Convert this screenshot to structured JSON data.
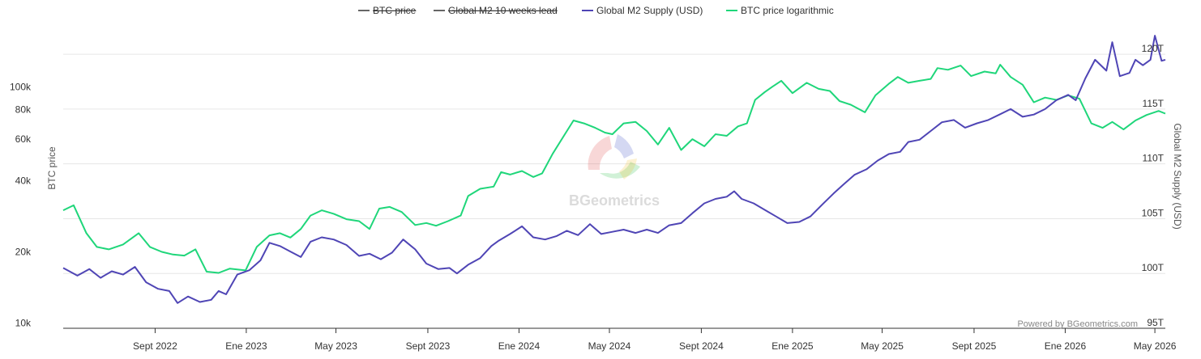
{
  "chart_data": {
    "type": "line",
    "watermark": "BGeometrics",
    "credit": "Powered by BGeometrics.com",
    "legend_position": "top-center",
    "legend": [
      {
        "name": "BTC price",
        "color": "#555555",
        "hidden": true
      },
      {
        "name": "Global M2 10 weeks lead",
        "color": "#555555",
        "hidden": true
      },
      {
        "name": "Global M2 Supply (USD)",
        "color": "#4f45b5",
        "hidden": false
      },
      {
        "name": "BTC price logarithmic",
        "color": "#1fd67a",
        "hidden": false
      }
    ],
    "x_axis": {
      "start": "2022-05-01",
      "end": "2026-05-15",
      "ticks": [
        {
          "label": "Sept 2022",
          "date": "2022-09-01"
        },
        {
          "label": "Ene 2023",
          "date": "2023-01-01"
        },
        {
          "label": "May 2023",
          "date": "2023-05-01"
        },
        {
          "label": "Sept 2023",
          "date": "2023-09-01"
        },
        {
          "label": "Ene 2024",
          "date": "2024-01-01"
        },
        {
          "label": "May 2024",
          "date": "2024-05-01"
        },
        {
          "label": "Sept 2024",
          "date": "2024-09-01"
        },
        {
          "label": "Ene 2025",
          "date": "2025-01-01"
        },
        {
          "label": "May 2025",
          "date": "2025-05-01"
        },
        {
          "label": "Sept 2025",
          "date": "2025-09-01"
        },
        {
          "label": "Ene 2026",
          "date": "2026-01-01"
        },
        {
          "label": "May 2026",
          "date": "2026-05-01"
        }
      ]
    },
    "y_left": {
      "title": "BTC price",
      "scale": "log",
      "range": [
        9500,
        170000
      ],
      "ticks": [
        {
          "label": "10k",
          "value": 10000
        },
        {
          "label": "20k",
          "value": 20000
        },
        {
          "label": "40k",
          "value": 40000
        },
        {
          "label": "60k",
          "value": 60000
        },
        {
          "label": "80k",
          "value": 80000
        },
        {
          "label": "100k",
          "value": 100000
        }
      ]
    },
    "y_right": {
      "title": "Global M2 Supply (USD)",
      "scale": "linear",
      "unit": "T",
      "range": [
        95,
        122
      ],
      "ticks": [
        {
          "label": "95T",
          "value": 95
        },
        {
          "label": "100T",
          "value": 100
        },
        {
          "label": "105T",
          "value": 105
        },
        {
          "label": "110T",
          "value": 110
        },
        {
          "label": "115T",
          "value": 115
        },
        {
          "label": "120T",
          "value": 120
        }
      ]
    },
    "series": [
      {
        "name": "BTC price logarithmic",
        "axis": "left",
        "color": "#1fd67a",
        "points": [
          [
            "2022-05-01",
            30000
          ],
          [
            "2022-05-15",
            31500
          ],
          [
            "2022-06-01",
            24000
          ],
          [
            "2022-06-15",
            21000
          ],
          [
            "2022-07-01",
            20500
          ],
          [
            "2022-07-20",
            21500
          ],
          [
            "2022-08-10",
            24000
          ],
          [
            "2022-08-25",
            21000
          ],
          [
            "2022-09-10",
            20000
          ],
          [
            "2022-09-25",
            19500
          ],
          [
            "2022-10-10",
            19300
          ],
          [
            "2022-10-25",
            20500
          ],
          [
            "2022-11-09",
            16500
          ],
          [
            "2022-11-25",
            16300
          ],
          [
            "2022-12-10",
            17000
          ],
          [
            "2022-12-31",
            16700
          ],
          [
            "2023-01-15",
            21000
          ],
          [
            "2023-02-01",
            23500
          ],
          [
            "2023-02-15",
            24000
          ],
          [
            "2023-03-01",
            23000
          ],
          [
            "2023-03-15",
            25000
          ],
          [
            "2023-03-28",
            28500
          ],
          [
            "2023-04-12",
            30000
          ],
          [
            "2023-04-28",
            29000
          ],
          [
            "2023-05-15",
            27500
          ],
          [
            "2023-06-01",
            27000
          ],
          [
            "2023-06-15",
            25000
          ],
          [
            "2023-06-28",
            30500
          ],
          [
            "2023-07-12",
            31000
          ],
          [
            "2023-07-28",
            29500
          ],
          [
            "2023-08-15",
            26000
          ],
          [
            "2023-08-30",
            26500
          ],
          [
            "2023-09-12",
            25800
          ],
          [
            "2023-09-28",
            27000
          ],
          [
            "2023-10-15",
            28500
          ],
          [
            "2023-10-25",
            34500
          ],
          [
            "2023-11-10",
            37000
          ],
          [
            "2023-11-28",
            37800
          ],
          [
            "2023-12-08",
            43500
          ],
          [
            "2023-12-20",
            42500
          ],
          [
            "2024-01-05",
            44000
          ],
          [
            "2024-01-20",
            41500
          ],
          [
            "2024-02-01",
            43000
          ],
          [
            "2024-02-15",
            52000
          ],
          [
            "2024-03-01",
            62000
          ],
          [
            "2024-03-14",
            72000
          ],
          [
            "2024-03-28",
            70000
          ],
          [
            "2024-04-12",
            67000
          ],
          [
            "2024-04-25",
            64000
          ],
          [
            "2024-05-05",
            63000
          ],
          [
            "2024-05-20",
            70000
          ],
          [
            "2024-06-05",
            71000
          ],
          [
            "2024-06-20",
            65000
          ],
          [
            "2024-07-05",
            57000
          ],
          [
            "2024-07-20",
            67000
          ],
          [
            "2024-08-05",
            54000
          ],
          [
            "2024-08-20",
            60000
          ],
          [
            "2024-09-05",
            56000
          ],
          [
            "2024-09-20",
            63000
          ],
          [
            "2024-10-05",
            62000
          ],
          [
            "2024-10-20",
            68000
          ],
          [
            "2024-11-01",
            70000
          ],
          [
            "2024-11-12",
            88000
          ],
          [
            "2024-11-25",
            95000
          ],
          [
            "2024-12-05",
            100000
          ],
          [
            "2024-12-17",
            106000
          ],
          [
            "2025-01-01",
            94000
          ],
          [
            "2025-01-20",
            104000
          ],
          [
            "2025-02-05",
            98000
          ],
          [
            "2025-02-20",
            96000
          ],
          [
            "2025-03-05",
            87000
          ],
          [
            "2025-03-20",
            84000
          ],
          [
            "2025-04-08",
            78000
          ],
          [
            "2025-04-22",
            92000
          ],
          [
            "2025-05-10",
            103000
          ],
          [
            "2025-05-22",
            110000
          ],
          [
            "2025-06-05",
            104000
          ],
          [
            "2025-06-20",
            106000
          ],
          [
            "2025-07-05",
            108000
          ],
          [
            "2025-07-14",
            120000
          ],
          [
            "2025-07-28",
            118000
          ],
          [
            "2025-08-14",
            123000
          ],
          [
            "2025-08-28",
            111000
          ],
          [
            "2025-09-15",
            116000
          ],
          [
            "2025-09-30",
            114000
          ],
          [
            "2025-10-06",
            124000
          ],
          [
            "2025-10-20",
            110000
          ],
          [
            "2025-11-05",
            102000
          ],
          [
            "2025-11-20",
            86000
          ],
          [
            "2025-12-05",
            90000
          ],
          [
            "2025-12-20",
            88000
          ],
          [
            "2026-01-05",
            92000
          ],
          [
            "2026-01-20",
            89000
          ],
          [
            "2026-02-05",
            70000
          ],
          [
            "2026-02-20",
            67000
          ],
          [
            "2026-03-05",
            71000
          ],
          [
            "2026-03-20",
            66000
          ],
          [
            "2026-04-05",
            72000
          ],
          [
            "2026-04-20",
            76000
          ],
          [
            "2026-05-06",
            79000
          ],
          [
            "2026-05-15",
            77000
          ]
        ]
      },
      {
        "name": "Global M2 Supply (USD)",
        "axis": "right",
        "color": "#4f45b5",
        "points": [
          [
            "2022-05-01",
            100.5
          ],
          [
            "2022-05-20",
            99.8
          ],
          [
            "2022-06-05",
            100.4
          ],
          [
            "2022-06-20",
            99.6
          ],
          [
            "2022-07-05",
            100.2
          ],
          [
            "2022-07-20",
            99.9
          ],
          [
            "2022-08-05",
            100.6
          ],
          [
            "2022-08-20",
            99.2
          ],
          [
            "2022-09-05",
            98.6
          ],
          [
            "2022-09-20",
            98.4
          ],
          [
            "2022-10-01",
            97.3
          ],
          [
            "2022-10-15",
            97.9
          ],
          [
            "2022-10-31",
            97.4
          ],
          [
            "2022-11-15",
            97.6
          ],
          [
            "2022-11-25",
            98.4
          ],
          [
            "2022-12-05",
            98.1
          ],
          [
            "2022-12-20",
            99.9
          ],
          [
            "2023-01-05",
            100.3
          ],
          [
            "2023-01-20",
            101.2
          ],
          [
            "2023-02-01",
            102.8
          ],
          [
            "2023-02-15",
            102.5
          ],
          [
            "2023-03-01",
            102.0
          ],
          [
            "2023-03-15",
            101.5
          ],
          [
            "2023-03-28",
            102.9
          ],
          [
            "2023-04-12",
            103.3
          ],
          [
            "2023-04-28",
            103.1
          ],
          [
            "2023-05-15",
            102.6
          ],
          [
            "2023-06-01",
            101.6
          ],
          [
            "2023-06-15",
            101.8
          ],
          [
            "2023-06-30",
            101.3
          ],
          [
            "2023-07-15",
            101.9
          ],
          [
            "2023-07-30",
            103.1
          ],
          [
            "2023-08-15",
            102.2
          ],
          [
            "2023-08-30",
            100.9
          ],
          [
            "2023-09-15",
            100.4
          ],
          [
            "2023-09-30",
            100.5
          ],
          [
            "2023-10-10",
            100.0
          ],
          [
            "2023-10-25",
            100.8
          ],
          [
            "2023-11-10",
            101.4
          ],
          [
            "2023-11-25",
            102.5
          ],
          [
            "2023-12-05",
            103.0
          ],
          [
            "2023-12-20",
            103.6
          ],
          [
            "2024-01-05",
            104.3
          ],
          [
            "2024-01-20",
            103.3
          ],
          [
            "2024-02-05",
            103.1
          ],
          [
            "2024-02-20",
            103.4
          ],
          [
            "2024-03-05",
            103.9
          ],
          [
            "2024-03-20",
            103.5
          ],
          [
            "2024-04-05",
            104.5
          ],
          [
            "2024-04-20",
            103.6
          ],
          [
            "2024-05-05",
            103.8
          ],
          [
            "2024-05-20",
            104.0
          ],
          [
            "2024-06-05",
            103.7
          ],
          [
            "2024-06-20",
            104.0
          ],
          [
            "2024-07-05",
            103.7
          ],
          [
            "2024-07-20",
            104.4
          ],
          [
            "2024-08-05",
            104.6
          ],
          [
            "2024-08-20",
            105.5
          ],
          [
            "2024-09-05",
            106.4
          ],
          [
            "2024-09-20",
            106.8
          ],
          [
            "2024-10-05",
            107.0
          ],
          [
            "2024-10-15",
            107.5
          ],
          [
            "2024-10-25",
            106.8
          ],
          [
            "2024-11-10",
            106.4
          ],
          [
            "2024-11-25",
            105.8
          ],
          [
            "2024-12-10",
            105.2
          ],
          [
            "2024-12-25",
            104.6
          ],
          [
            "2025-01-10",
            104.7
          ],
          [
            "2025-01-25",
            105.2
          ],
          [
            "2025-02-10",
            106.3
          ],
          [
            "2025-02-25",
            107.3
          ],
          [
            "2025-03-10",
            108.1
          ],
          [
            "2025-03-25",
            109.0
          ],
          [
            "2025-04-10",
            109.5
          ],
          [
            "2025-04-25",
            110.3
          ],
          [
            "2025-05-10",
            110.9
          ],
          [
            "2025-05-25",
            111.1
          ],
          [
            "2025-06-05",
            112.0
          ],
          [
            "2025-06-20",
            112.2
          ],
          [
            "2025-07-05",
            113.0
          ],
          [
            "2025-07-20",
            113.8
          ],
          [
            "2025-08-05",
            114.0
          ],
          [
            "2025-08-20",
            113.3
          ],
          [
            "2025-09-05",
            113.7
          ],
          [
            "2025-09-20",
            114.0
          ],
          [
            "2025-10-05",
            114.5
          ],
          [
            "2025-10-20",
            115.0
          ],
          [
            "2025-11-05",
            114.3
          ],
          [
            "2025-11-20",
            114.5
          ],
          [
            "2025-12-05",
            115.0
          ],
          [
            "2025-12-20",
            115.8
          ],
          [
            "2026-01-05",
            116.3
          ],
          [
            "2026-01-15",
            115.8
          ],
          [
            "2026-01-28",
            117.8
          ],
          [
            "2026-02-10",
            119.5
          ],
          [
            "2026-02-25",
            118.5
          ],
          [
            "2026-03-05",
            121.1
          ],
          [
            "2026-03-15",
            118.0
          ],
          [
            "2026-03-28",
            118.3
          ],
          [
            "2026-04-05",
            119.5
          ],
          [
            "2026-04-15",
            119.0
          ],
          [
            "2026-04-25",
            119.5
          ],
          [
            "2026-05-01",
            121.7
          ],
          [
            "2026-05-10",
            119.4
          ],
          [
            "2026-05-15",
            119.5
          ]
        ]
      }
    ]
  }
}
